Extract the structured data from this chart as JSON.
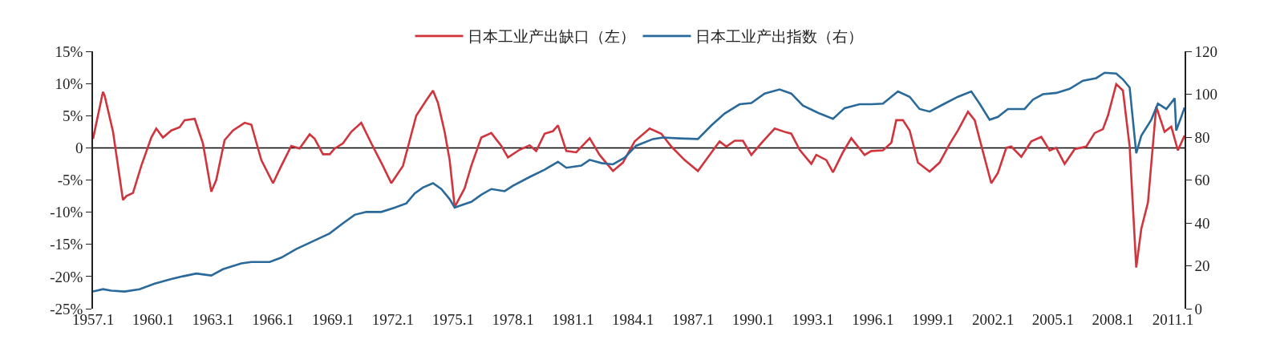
{
  "chart_data": {
    "type": "line",
    "legend": "top",
    "grid": false,
    "marker": "none",
    "line_style": "solid",
    "xlim": [
      "1957-01",
      "2011-08"
    ],
    "xticks": [
      {
        "value": "1957-01",
        "label": "1957.1"
      },
      {
        "value": "1960-01",
        "label": "1960.1"
      },
      {
        "value": "1963-01",
        "label": "1963.1"
      },
      {
        "value": "1966-01",
        "label": "1966.1"
      },
      {
        "value": "1969-01",
        "label": "1969.1"
      },
      {
        "value": "1972-01",
        "label": "1972.1"
      },
      {
        "value": "1975-01",
        "label": "1975.1"
      },
      {
        "value": "1978-01",
        "label": "1978.1"
      },
      {
        "value": "1981-01",
        "label": "1981.1"
      },
      {
        "value": "1984-01",
        "label": "1984.1"
      },
      {
        "value": "1987-01",
        "label": "1987.1"
      },
      {
        "value": "1990-01",
        "label": "1990.1"
      },
      {
        "value": "1993-01",
        "label": "1993.1"
      },
      {
        "value": "1996-01",
        "label": "1996.1"
      },
      {
        "value": "1999-01",
        "label": "1999.1"
      },
      {
        "value": "2002-01",
        "label": "2002.1"
      },
      {
        "value": "2005-01",
        "label": "2005.1"
      },
      {
        "value": "2008-01",
        "label": "2008.1"
      },
      {
        "value": "2011-01",
        "label": "2011.1"
      }
    ],
    "ylim": [
      -25,
      15
    ],
    "yticks": [
      {
        "value": -25,
        "label": "-25%"
      },
      {
        "value": -20,
        "label": "-20%"
      },
      {
        "value": -15,
        "label": "-15%"
      },
      {
        "value": -10,
        "label": "-10%"
      },
      {
        "value": -5,
        "label": "-5%"
      },
      0,
      {
        "value": 5,
        "label": "5%"
      },
      {
        "value": 10,
        "label": "10%"
      },
      {
        "value": 15,
        "label": "15%"
      }
    ],
    "y2lim": [
      0,
      120
    ],
    "y2ticks": [
      0,
      20,
      40,
      60,
      80,
      100,
      120
    ],
    "ref_lines": [
      {
        "axis": "y",
        "value": 0,
        "color": "#000000"
      }
    ],
    "series": [
      {
        "name": "日本工业产出缺口（左）",
        "color": "#d0343c",
        "axis": "y",
        "x": [
          "1957-01",
          "1957-07",
          "1957-08",
          "1958-01",
          "1958-07",
          "1958-09",
          "1959-01",
          "1959-06",
          "1959-12",
          "1960-03",
          "1960-07",
          "1960-12",
          "1961-05",
          "1961-08",
          "1962-02",
          "1962-07",
          "1962-12",
          "1963-03",
          "1963-08",
          "1964-01",
          "1964-08",
          "1964-12",
          "1965-06",
          "1966-01",
          "1966-06",
          "1966-12",
          "1967-05",
          "1967-11",
          "1968-02",
          "1968-07",
          "1968-11",
          "1969-02",
          "1969-07",
          "1969-12",
          "1970-06",
          "1970-12",
          "1971-07",
          "1971-12",
          "1972-07",
          "1973-03",
          "1973-09",
          "1974-01",
          "1974-04",
          "1974-08",
          "1974-11",
          "1975-02",
          "1975-08",
          "1975-12",
          "1976-06",
          "1976-12",
          "1977-06",
          "1977-10",
          "1978-05",
          "1978-11",
          "1979-03",
          "1979-08",
          "1980-01",
          "1980-04",
          "1980-09",
          "1981-03",
          "1981-11",
          "1982-05",
          "1983-01",
          "1983-07",
          "1984-02",
          "1984-11",
          "1985-06",
          "1985-12",
          "1986-08",
          "1987-04",
          "1987-11",
          "1988-05",
          "1988-09",
          "1989-02",
          "1989-07",
          "1989-12",
          "1990-07",
          "1991-02",
          "1991-09",
          "1991-12",
          "1992-05",
          "1992-12",
          "1993-03",
          "1993-09",
          "1994-01",
          "1994-07",
          "1994-12",
          "1995-08",
          "1995-12",
          "1996-07",
          "1996-12",
          "1997-03",
          "1997-07",
          "1997-11",
          "1998-04",
          "1998-11",
          "1999-05",
          "1999-11",
          "2000-04",
          "2000-10",
          "2001-02",
          "2001-07",
          "2001-12",
          "2002-04",
          "2002-09",
          "2002-12",
          "2003-06",
          "2003-12",
          "2004-06",
          "2004-11",
          "2005-03",
          "2005-08",
          "2006-02",
          "2006-09",
          "2007-02",
          "2007-07",
          "2007-10",
          "2008-03",
          "2008-07",
          "2008-11",
          "2009-03",
          "2009-06",
          "2009-10",
          "2010-03",
          "2010-08",
          "2010-12",
          "2011-04",
          "2011-08"
        ],
        "values": [
          1.4,
          8.7,
          8.1,
          2.5,
          -8.1,
          -7.5,
          -7.0,
          -2.8,
          1.6,
          3.0,
          1.6,
          2.7,
          3.2,
          4.3,
          4.5,
          0.7,
          -6.8,
          -5.0,
          1.2,
          2.7,
          3.9,
          3.6,
          -1.9,
          -5.5,
          -2.8,
          0.3,
          -0.1,
          2.1,
          1.4,
          -1.0,
          -1.0,
          -0.1,
          0.7,
          2.5,
          3.9,
          0.7,
          -2.8,
          -5.5,
          -2.8,
          5.0,
          7.4,
          8.9,
          7.0,
          2.5,
          -1.9,
          -9.2,
          -6.3,
          -2.8,
          1.6,
          2.3,
          0.3,
          -1.5,
          -0.3,
          0.4,
          -0.5,
          2.2,
          2.6,
          3.5,
          -0.5,
          -0.7,
          1.5,
          -1.1,
          -3.6,
          -2.3,
          1.0,
          3.0,
          2.2,
          0.2,
          -1.9,
          -3.6,
          -1.1,
          1.0,
          0.2,
          1.1,
          1.1,
          -1.1,
          1.0,
          3.0,
          2.4,
          2.2,
          -0.3,
          -2.5,
          -1.1,
          -1.9,
          -3.8,
          -0.7,
          1.5,
          -1.1,
          -0.5,
          -0.4,
          0.8,
          4.3,
          4.3,
          2.7,
          -2.3,
          -3.7,
          -2.3,
          0.6,
          2.7,
          5.6,
          4.3,
          -0.6,
          -5.5,
          -3.9,
          0.0,
          0.2,
          -1.4,
          1.0,
          1.7,
          -0.4,
          0.0,
          -2.5,
          -0.2,
          0.2,
          2.3,
          2.9,
          5.0,
          9.9,
          8.9,
          0.2,
          -18.6,
          -12.6,
          -8.5,
          6.4,
          2.5,
          3.3,
          -0.4,
          1.9
        ]
      },
      {
        "name": "日本工业产出指数（右）",
        "color": "#2a6a9a",
        "axis": "y2",
        "x": [
          "1957-01",
          "1957-07",
          "1957-12",
          "1958-08",
          "1959-05",
          "1960-02",
          "1960-12",
          "1961-07",
          "1962-03",
          "1962-12",
          "1963-07",
          "1964-06",
          "1964-12",
          "1965-11",
          "1966-06",
          "1967-03",
          "1968-02",
          "1968-11",
          "1969-07",
          "1970-02",
          "1970-09",
          "1971-06",
          "1972-02",
          "1972-09",
          "1973-02",
          "1973-07",
          "1974-01",
          "1974-06",
          "1974-11",
          "1975-02",
          "1975-07",
          "1975-12",
          "1976-06",
          "1976-12",
          "1977-08",
          "1978-01",
          "1978-11",
          "1979-08",
          "1980-04",
          "1980-09",
          "1981-06",
          "1981-11",
          "1982-06",
          "1983-01",
          "1983-08",
          "1984-03",
          "1985-01",
          "1985-07",
          "1986-05",
          "1987-04",
          "1987-12",
          "1988-08",
          "1989-05",
          "1989-12",
          "1990-08",
          "1991-05",
          "1991-12",
          "1992-07",
          "1993-05",
          "1994-01",
          "1994-08",
          "1995-05",
          "1995-12",
          "1996-07",
          "1997-04",
          "1997-11",
          "1998-05",
          "1998-11",
          "1999-08",
          "2000-04",
          "2000-12",
          "2001-05",
          "2001-11",
          "2002-04",
          "2002-10",
          "2003-08",
          "2004-01",
          "2004-07",
          "2005-03",
          "2005-11",
          "2006-07",
          "2007-03",
          "2007-08",
          "2008-03",
          "2008-07",
          "2008-11",
          "2009-03",
          "2009-06",
          "2009-12",
          "2010-04",
          "2010-09",
          "2011-02",
          "2011-03",
          "2011-06",
          "2011-08"
        ],
        "values": [
          8.0,
          9.1,
          8.4,
          8.0,
          9.1,
          11.7,
          13.8,
          15.1,
          16.4,
          15.5,
          18.4,
          21.1,
          21.8,
          21.8,
          23.8,
          27.8,
          31.8,
          35.1,
          39.8,
          43.8,
          45.1,
          45.1,
          47.1,
          49.1,
          53.8,
          56.5,
          58.5,
          55.8,
          51.1,
          47.1,
          48.5,
          49.8,
          53.1,
          55.8,
          54.8,
          57.3,
          61.4,
          64.8,
          68.5,
          65.7,
          66.7,
          69.4,
          67.9,
          67.3,
          70.4,
          76.0,
          79.1,
          79.8,
          79.4,
          79.1,
          85.4,
          91.0,
          95.3,
          95.9,
          100.3,
          102.2,
          100.3,
          94.7,
          91.0,
          88.5,
          93.5,
          95.3,
          95.3,
          95.6,
          101.3,
          98.8,
          93.1,
          91.9,
          95.6,
          98.8,
          101.3,
          95.6,
          88.1,
          89.4,
          93.1,
          93.1,
          97.5,
          100.0,
          100.6,
          102.5,
          106.3,
          107.5,
          110.0,
          109.6,
          106.9,
          103.1,
          72.5,
          80.6,
          88.1,
          95.6,
          93.1,
          98.1,
          83.1,
          89.4,
          93.8
        ]
      }
    ]
  }
}
